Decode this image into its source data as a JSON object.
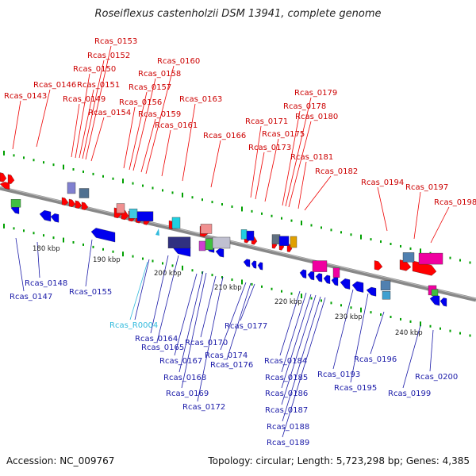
{
  "title": "Roseiflexus castenholzii DSM 13941, complete genome",
  "footer": {
    "accession": "Accession: NC_009767",
    "summary": "Topology: circular; Length: 5,723,298 bp; Genes: 4,385"
  },
  "colors": {
    "top_strand_label": "#cc0000",
    "bottom_strand_label": "#1a1aa8",
    "rna_label": "#33bbdd",
    "forward_gene": "#ff0000",
    "reverse_gene": "#0000ee",
    "backbone": "#888888",
    "tick": "#00a000"
  },
  "scale_labels": [
    "180 kbp",
    "190 kbp",
    "200 kbp",
    "210 kbp",
    "220 kbp",
    "230 kbp",
    "240 kbp"
  ],
  "labels_top": [
    "Rcas_0143",
    "Rcas_0146",
    "Rcas_0149",
    "Rcas_0150",
    "Rcas_0151",
    "Rcas_0152",
    "Rcas_0153",
    "Rcas_0154",
    "Rcas_0156",
    "Rcas_0157",
    "Rcas_0158",
    "Rcas_0159",
    "Rcas_0160",
    "Rcas_0161",
    "Rcas_0163",
    "Rcas_0166",
    "Rcas_0171",
    "Rcas_0173",
    "Rcas_0175",
    "Rcas_0178",
    "Rcas_0179",
    "Rcas_0180",
    "Rcas_0181",
    "Rcas_0182",
    "Rcas_0194",
    "Rcas_0197",
    "Rcas_0198"
  ],
  "labels_bottom": [
    "Rcas_0147",
    "Rcas_0148",
    "Rcas_0155",
    "Rcas_R0004",
    "Rcas_0164",
    "Rcas_0165",
    "Rcas_0167",
    "Rcas_0168",
    "Rcas_0169",
    "Rcas_0170",
    "Rcas_0172",
    "Rcas_0174",
    "Rcas_0176",
    "Rcas_0177",
    "Rcas_0184",
    "Rcas_0185",
    "Rcas_0186",
    "Rcas_0187",
    "Rcas_0188",
    "Rcas_0189",
    "Rcas_0193",
    "Rcas_0195",
    "Rcas_0196",
    "Rcas_0199",
    "Rcas_0200"
  ]
}
